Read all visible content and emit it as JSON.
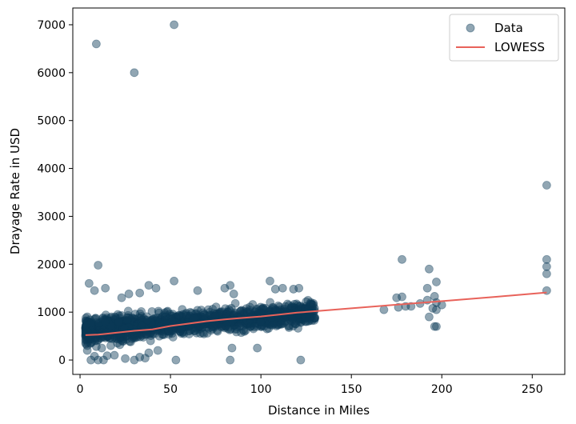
{
  "chart_data": {
    "type": "scatter",
    "title": "",
    "xlabel": "Distance in Miles",
    "ylabel": "Drayage Rate in USD",
    "xlim": [
      -4,
      268
    ],
    "ylim": [
      -300,
      7350
    ],
    "xticks": [
      0,
      50,
      100,
      150,
      200,
      250
    ],
    "yticks": [
      0,
      1000,
      2000,
      3000,
      4000,
      5000,
      6000,
      7000
    ],
    "grid": false,
    "legend_position": "top-right",
    "series": [
      {
        "name": "Data",
        "kind": "scatter",
        "color": "#0b3a57",
        "opacity": 0.45,
        "points": [
          [
            9,
            6600
          ],
          [
            30,
            6000
          ],
          [
            52,
            7000
          ],
          [
            258,
            3650
          ],
          [
            258,
            2100
          ],
          [
            258,
            1950
          ],
          [
            258,
            1800
          ],
          [
            258,
            1450
          ],
          [
            178,
            2100
          ],
          [
            193,
            1900
          ],
          [
            192,
            1500
          ],
          [
            197,
            1630
          ],
          [
            196,
            1330
          ],
          [
            175,
            1300
          ],
          [
            178,
            1320
          ],
          [
            176,
            1100
          ],
          [
            180,
            1120
          ],
          [
            183,
            1120
          ],
          [
            168,
            1050
          ],
          [
            188,
            1180
          ],
          [
            192,
            1250
          ],
          [
            195,
            1080
          ],
          [
            197,
            1200
          ],
          [
            197,
            1050
          ],
          [
            193,
            900
          ],
          [
            196,
            700
          ],
          [
            197,
            700
          ],
          [
            200,
            1150
          ],
          [
            10,
            1980
          ],
          [
            5,
            1600
          ],
          [
            8,
            1450
          ],
          [
            14,
            1500
          ],
          [
            38,
            1560
          ],
          [
            42,
            1500
          ],
          [
            52,
            1650
          ],
          [
            65,
            1450
          ],
          [
            80,
            1500
          ],
          [
            83,
            1560
          ],
          [
            105,
            1650
          ],
          [
            108,
            1480
          ],
          [
            112,
            1500
          ],
          [
            118,
            1480
          ],
          [
            121,
            1500
          ],
          [
            85,
            1380
          ],
          [
            33,
            1400
          ],
          [
            23,
            1300
          ],
          [
            27,
            1380
          ],
          [
            6,
            0
          ],
          [
            10,
            0
          ],
          [
            13,
            0
          ],
          [
            30,
            0
          ],
          [
            53,
            0
          ],
          [
            83,
            0
          ],
          [
            122,
            0
          ],
          [
            25,
            30
          ],
          [
            8,
            80
          ],
          [
            15,
            90
          ],
          [
            19,
            100
          ],
          [
            33,
            60
          ],
          [
            36,
            40
          ],
          [
            84,
            250
          ],
          [
            98,
            250
          ],
          [
            38,
            150
          ],
          [
            43,
            200
          ],
          [
            4,
            200
          ],
          [
            12,
            250
          ],
          [
            129,
            1150
          ],
          [
            126,
            1050
          ],
          [
            124,
            950
          ],
          [
            127,
            900
          ],
          [
            125,
            800
          ],
          [
            4,
            300
          ],
          [
            6,
            350
          ],
          [
            9,
            280
          ],
          [
            17,
            300
          ],
          [
            22,
            320
          ],
          [
            28,
            380
          ],
          [
            39,
            400
          ]
        ]
      },
      {
        "name": "LOWESS",
        "kind": "line",
        "color": "#e8625a",
        "points": [
          [
            3,
            520
          ],
          [
            10,
            530
          ],
          [
            20,
            570
          ],
          [
            30,
            610
          ],
          [
            40,
            640
          ],
          [
            50,
            710
          ],
          [
            60,
            760
          ],
          [
            70,
            810
          ],
          [
            80,
            850
          ],
          [
            90,
            880
          ],
          [
            100,
            910
          ],
          [
            110,
            950
          ],
          [
            120,
            990
          ],
          [
            130,
            1020
          ],
          [
            150,
            1080
          ],
          [
            170,
            1140
          ],
          [
            190,
            1200
          ],
          [
            210,
            1260
          ],
          [
            230,
            1320
          ],
          [
            258,
            1410
          ]
        ]
      }
    ],
    "clusters": [
      {
        "x_range": [
          3,
          130
        ],
        "y_center_base": 600,
        "y_center_slope": 3.0,
        "y_spread": 260,
        "count": 1500
      }
    ]
  }
}
